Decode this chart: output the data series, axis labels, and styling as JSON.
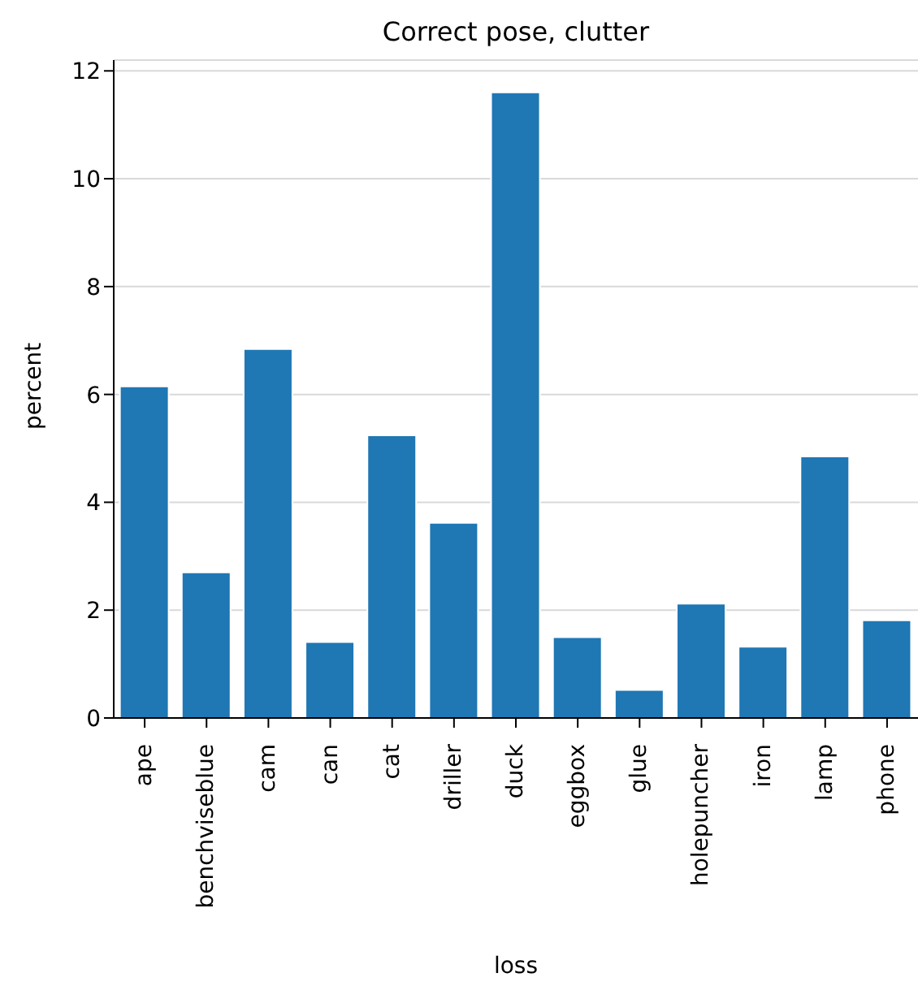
{
  "chart_data": {
    "type": "bar",
    "title": "Correct pose, clutter",
    "xlabel": "loss",
    "ylabel": "percent",
    "categories": [
      "ape",
      "benchviseblue",
      "cam",
      "can",
      "cat",
      "driller",
      "duck",
      "eggbox",
      "glue",
      "holepuncher",
      "iron",
      "lamp",
      "phone"
    ],
    "values": [
      6.15,
      2.7,
      6.84,
      1.41,
      5.24,
      3.62,
      11.6,
      1.5,
      0.52,
      2.12,
      1.32,
      4.85,
      1.81
    ],
    "color": "#1f77b4",
    "ylim": [
      0,
      12.2
    ],
    "yticks": [
      0,
      2,
      4,
      6,
      8,
      10,
      12
    ],
    "grid": "y"
  }
}
